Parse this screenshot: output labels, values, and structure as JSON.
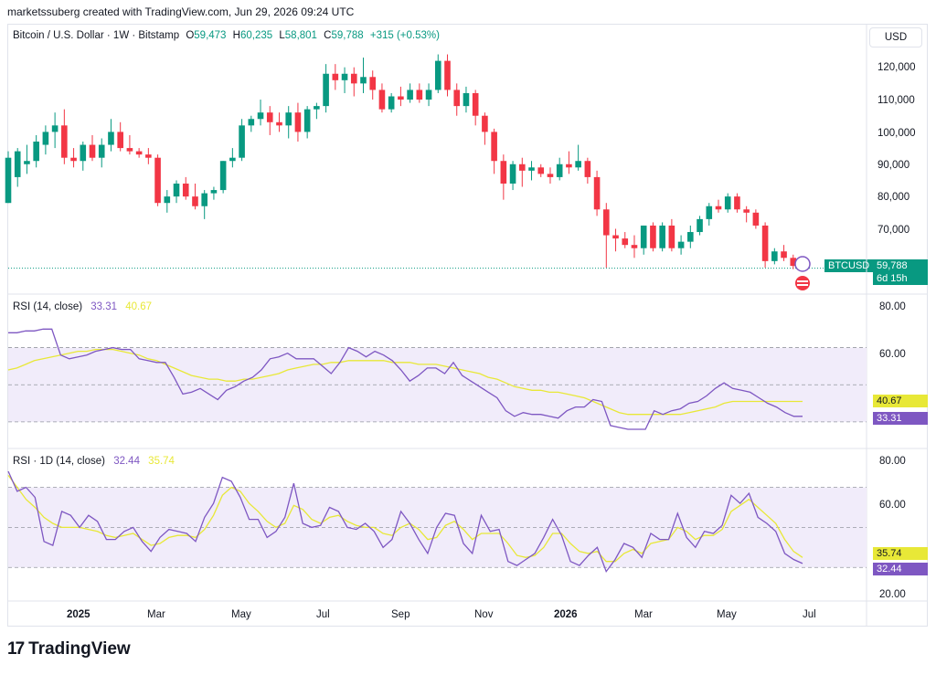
{
  "header": {
    "text": "marketssuberg created with TradingView.com, Jun 29, 2026 09:24 UTC"
  },
  "price_legend": {
    "symbol": "Bitcoin / U.S. Dollar · 1W · Bitstamp",
    "open_key": "O",
    "open": "59,473",
    "high_key": "H",
    "high": "60,235",
    "low_key": "L",
    "low": "58,801",
    "close_key": "C",
    "close": "59,788",
    "change": "+315 (+0.53%)"
  },
  "currency_button": "USD",
  "price_axis": {
    "ticks": [
      "120,000",
      "110,000",
      "100,000",
      "90,000",
      "80,000",
      "70,000"
    ]
  },
  "price_tag": {
    "symbol": "BTCUSD",
    "value": "59,788",
    "countdown": "6d 15h"
  },
  "rsi1": {
    "title": "RSI (14, close)",
    "value": "33.31",
    "ma_value": "40.67",
    "ticks": [
      "80.00",
      "60.00"
    ]
  },
  "rsi2": {
    "title": "RSI · 1D (14, close)",
    "value": "32.44",
    "ma_value": "35.74",
    "ticks": [
      "80.00",
      "60.00",
      "20.00"
    ]
  },
  "time_axis": [
    {
      "label": "2025",
      "bold": true
    },
    {
      "label": "Mar"
    },
    {
      "label": "May"
    },
    {
      "label": "Jul"
    },
    {
      "label": "Sep"
    },
    {
      "label": "Nov"
    },
    {
      "label": "2026",
      "bold": true
    },
    {
      "label": "Mar"
    },
    {
      "label": "May"
    },
    {
      "label": "Jul"
    }
  ],
  "logo": {
    "text": "TradingView",
    "mark": "17"
  },
  "colors": {
    "up": "#089981",
    "down": "#f23645",
    "rsi": "#7e57c2",
    "rsi_ma": "#e8e837",
    "band": "#f1ecfa",
    "accent": "#089981"
  },
  "chart_data": [
    {
      "type": "candlestick",
      "title": "Bitcoin / U.S. Dollar · 1W · Bitstamp",
      "ylim": [
        58000,
        127000
      ],
      "candles": [
        [
          80000,
          96000,
          80000,
          94000
        ],
        [
          88000,
          97000,
          85000,
          96000
        ],
        [
          92000,
          98000,
          89000,
          93000
        ],
        [
          93000,
          101000,
          91000,
          99000
        ],
        [
          98000,
          104000,
          95000,
          102000
        ],
        [
          102000,
          108000,
          97000,
          104000
        ],
        [
          104000,
          109000,
          92000,
          94000
        ],
        [
          94000,
          97000,
          91000,
          93000
        ],
        [
          93000,
          99000,
          90000,
          98000
        ],
        [
          98000,
          101000,
          93000,
          94000
        ],
        [
          94000,
          100000,
          91000,
          98000
        ],
        [
          98000,
          106000,
          96000,
          102000
        ],
        [
          102000,
          105000,
          96000,
          97000
        ],
        [
          97000,
          101000,
          95000,
          96000
        ],
        [
          96000,
          97000,
          94000,
          95000
        ],
        [
          95000,
          97000,
          92000,
          94000
        ],
        [
          94000,
          95000,
          79000,
          80000
        ],
        [
          80000,
          84000,
          77000,
          82000
        ],
        [
          82000,
          87000,
          80000,
          86000
        ],
        [
          86000,
          88000,
          81000,
          82000
        ],
        [
          82000,
          86000,
          78000,
          79000
        ],
        [
          79000,
          84000,
          75000,
          83000
        ],
        [
          83000,
          85000,
          81000,
          84000
        ],
        [
          84000,
          93000,
          83000,
          93000
        ],
        [
          93000,
          97000,
          91000,
          94000
        ],
        [
          94000,
          106000,
          93000,
          104000
        ],
        [
          104000,
          107000,
          102000,
          106000
        ],
        [
          106000,
          112000,
          104000,
          108000
        ],
        [
          108000,
          110000,
          101000,
          105000
        ],
        [
          105000,
          108000,
          102000,
          104000
        ],
        [
          104000,
          110000,
          100000,
          108000
        ],
        [
          108000,
          111000,
          99000,
          102000
        ],
        [
          102000,
          110000,
          100000,
          109000
        ],
        [
          109000,
          111000,
          106000,
          110000
        ],
        [
          110000,
          123000,
          108000,
          120000
        ],
        [
          120000,
          123000,
          115000,
          118000
        ],
        [
          118000,
          122000,
          114000,
          120000
        ],
        [
          120000,
          122000,
          113000,
          117000
        ],
        [
          117000,
          125000,
          114000,
          119000
        ],
        [
          119000,
          121000,
          112000,
          115000
        ],
        [
          115000,
          117000,
          108000,
          109000
        ],
        [
          109000,
          114000,
          108000,
          113000
        ],
        [
          113000,
          116000,
          110000,
          112000
        ],
        [
          112000,
          117000,
          111000,
          115000
        ],
        [
          115000,
          117000,
          111000,
          112000
        ],
        [
          112000,
          117000,
          110000,
          115000
        ],
        [
          115000,
          126000,
          114000,
          124000
        ],
        [
          124000,
          126000,
          113000,
          115000
        ],
        [
          115000,
          117000,
          107000,
          110000
        ],
        [
          110000,
          116000,
          108000,
          114000
        ],
        [
          114000,
          115000,
          104000,
          107000
        ],
        [
          107000,
          108000,
          98000,
          102000
        ],
        [
          102000,
          103000,
          89000,
          93000
        ],
        [
          93000,
          95000,
          81000,
          86000
        ],
        [
          86000,
          93000,
          84000,
          92000
        ],
        [
          92000,
          94000,
          85000,
          90000
        ],
        [
          90000,
          93000,
          87000,
          91000
        ],
        [
          91000,
          92000,
          88000,
          89000
        ],
        [
          89000,
          91000,
          86000,
          88000
        ],
        [
          88000,
          94000,
          87000,
          92000
        ],
        [
          92000,
          96000,
          89000,
          91000
        ],
        [
          91000,
          98000,
          90000,
          93000
        ],
        [
          93000,
          94000,
          86000,
          88000
        ],
        [
          88000,
          90000,
          76000,
          78000
        ],
        [
          78000,
          80000,
          60000,
          70000
        ],
        [
          70000,
          72000,
          65000,
          69000
        ],
        [
          69000,
          71000,
          66000,
          67000
        ],
        [
          67000,
          70000,
          63000,
          66000
        ],
        [
          66000,
          73000,
          64000,
          73000
        ],
        [
          73000,
          74000,
          65000,
          66000
        ],
        [
          66000,
          74000,
          65000,
          73000
        ],
        [
          73000,
          75000,
          65000,
          66000
        ],
        [
          66000,
          70000,
          64000,
          68000
        ],
        [
          68000,
          73000,
          66000,
          71000
        ],
        [
          71000,
          76000,
          70000,
          75000
        ],
        [
          75000,
          80000,
          73000,
          79000
        ],
        [
          79000,
          81000,
          77000,
          78000
        ],
        [
          78000,
          83000,
          77000,
          82000
        ],
        [
          82000,
          83000,
          77000,
          78000
        ],
        [
          78000,
          79000,
          74000,
          77000
        ],
        [
          77000,
          78000,
          72000,
          73000
        ],
        [
          73000,
          74000,
          60000,
          62000
        ],
        [
          62000,
          66000,
          61000,
          65000
        ],
        [
          65000,
          67000,
          62000,
          63000
        ],
        [
          63000,
          64000,
          59500,
          60500
        ],
        [
          59473,
          60235,
          58801,
          59788
        ]
      ]
    },
    {
      "type": "line",
      "title": "RSI (14, close)",
      "ylim": [
        26,
        88
      ],
      "series": [
        {
          "name": "RSI (14, close)",
          "values": [
            78,
            78,
            79,
            79,
            80,
            80,
            66,
            64,
            65,
            66,
            68,
            69,
            70,
            69,
            69,
            64,
            63,
            62,
            62,
            54,
            45,
            46,
            48,
            45,
            42,
            47,
            49,
            52,
            54,
            58,
            64,
            65,
            67,
            64,
            64,
            64,
            60,
            56,
            62,
            70,
            68,
            65,
            68,
            66,
            63,
            58,
            52,
            55,
            59,
            59,
            56,
            62,
            55,
            52,
            49,
            46,
            43,
            36,
            33,
            35,
            34,
            34,
            33,
            32,
            36,
            38,
            38,
            42,
            41,
            28,
            27,
            26,
            26,
            26,
            36,
            34,
            36,
            37,
            40,
            41,
            44,
            48,
            51,
            48,
            47,
            46,
            43,
            40,
            38,
            35,
            33,
            33
          ]
        },
        {
          "name": "",
          "values": [
            58,
            59,
            61,
            63,
            64,
            65,
            66,
            67,
            68,
            68,
            69,
            69,
            69,
            68,
            67,
            66,
            64,
            63,
            61,
            59,
            57,
            55,
            54,
            53,
            53,
            52,
            52,
            53,
            53,
            54,
            55,
            56,
            58,
            59,
            60,
            61,
            61,
            62,
            62,
            63,
            63,
            63,
            63,
            63,
            62,
            62,
            62,
            61,
            61,
            61,
            60,
            59,
            58,
            57,
            56,
            54,
            53,
            51,
            49,
            48,
            47,
            47,
            46,
            46,
            45,
            44,
            43,
            41,
            39,
            37,
            35,
            34,
            34,
            34,
            34,
            34,
            34,
            34,
            35,
            36,
            37,
            38,
            40,
            41,
            41,
            41,
            41,
            41,
            41,
            41,
            41,
            41
          ]
        }
      ]
    },
    {
      "type": "line",
      "title": "RSI · 1D (14, close)",
      "ylim": [
        16,
        83
      ],
      "series": [
        {
          "name": "RSI · 1D (14, close)",
          "values": [
            78,
            68,
            70,
            65,
            43,
            41,
            58,
            56,
            50,
            56,
            53,
            44,
            44,
            48,
            50,
            43,
            38,
            45,
            49,
            48,
            47,
            43,
            55,
            62,
            75,
            73,
            65,
            54,
            54,
            45,
            48,
            55,
            72,
            52,
            50,
            51,
            60,
            58,
            50,
            49,
            52,
            48,
            40,
            44,
            58,
            52,
            44,
            37,
            50,
            57,
            56,
            42,
            37,
            56,
            48,
            49,
            33,
            31,
            34,
            37,
            45,
            54,
            46,
            33,
            31,
            36,
            40,
            28,
            34,
            42,
            40,
            35,
            47,
            44,
            44,
            57,
            45,
            40,
            48,
            47,
            51,
            66,
            62,
            67,
            55,
            52,
            48,
            37,
            34,
            32
          ]
        },
        {
          "name": "",
          "values": [
            76,
            70,
            64,
            60,
            55,
            52,
            50,
            50,
            50,
            49,
            48,
            46,
            45,
            46,
            47,
            44,
            41,
            42,
            45,
            46,
            46,
            45,
            49,
            56,
            66,
            70,
            68,
            62,
            58,
            53,
            50,
            52,
            61,
            59,
            54,
            52,
            55,
            56,
            53,
            51,
            50,
            50,
            47,
            46,
            50,
            52,
            49,
            44,
            45,
            51,
            53,
            49,
            44,
            47,
            47,
            47,
            42,
            36,
            35,
            36,
            40,
            47,
            47,
            42,
            38,
            37,
            38,
            33,
            33,
            37,
            39,
            37,
            42,
            43,
            44,
            50,
            48,
            44,
            46,
            46,
            49,
            58,
            61,
            64,
            60,
            56,
            52,
            44,
            38,
            35
          ]
        }
      ]
    }
  ]
}
